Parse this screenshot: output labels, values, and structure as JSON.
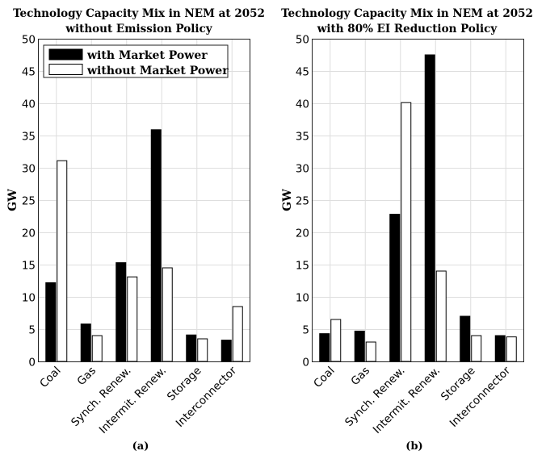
{
  "chart_data": [
    {
      "type": "bar",
      "title": [
        "Technology Capacity Mix in NEM at 2052",
        "without Emission Policy"
      ],
      "ylabel": "GW",
      "ylim": [
        0,
        50
      ],
      "yticks": [
        0,
        5,
        10,
        15,
        20,
        25,
        30,
        35,
        40,
        45,
        50
      ],
      "categories": [
        "Coal",
        "Gas",
        "Synch. Renew.",
        "Intermit. Renew.",
        "Storage",
        "Interconnector"
      ],
      "series": [
        {
          "name": "with Market Power",
          "color": "#000000",
          "values": [
            12.2,
            5.8,
            15.3,
            35.9,
            4.1,
            3.3
          ]
        },
        {
          "name": "without Market Power",
          "color": "#ffffff",
          "values": [
            31.1,
            4.0,
            13.1,
            14.5,
            3.5,
            8.5
          ]
        }
      ],
      "legend": "top-left",
      "grid": true,
      "caption": "(a)"
    },
    {
      "type": "bar",
      "title": [
        "Technology Capacity Mix in NEM at 2052",
        "with 80% EI Reduction Policy"
      ],
      "ylabel": "GW",
      "ylim": [
        0,
        50
      ],
      "yticks": [
        0,
        5,
        10,
        15,
        20,
        25,
        30,
        35,
        40,
        45,
        50
      ],
      "categories": [
        "Coal",
        "Gas",
        "Synch. Renew.",
        "Intermit. Renew.",
        "Storage",
        "Interconnector"
      ],
      "series": [
        {
          "name": "with Market Power",
          "color": "#000000",
          "values": [
            4.3,
            4.7,
            22.8,
            47.5,
            7.0,
            4.0
          ]
        },
        {
          "name": "without Market Power",
          "color": "#ffffff",
          "values": [
            6.5,
            3.0,
            40.1,
            14.0,
            4.0,
            3.8
          ]
        }
      ],
      "legend": "none",
      "grid": true,
      "caption": "(b)"
    }
  ]
}
